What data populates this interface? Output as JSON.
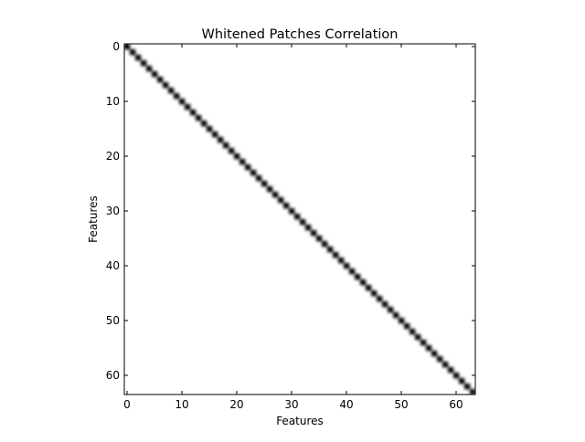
{
  "chart_data": {
    "type": "heatmap",
    "title": "Whitened Patches Correlation",
    "xlabel": "Features",
    "ylabel": "Features",
    "size": 64,
    "xlim": [
      -0.5,
      63.5
    ],
    "ylim": [
      63.5,
      -0.5
    ],
    "xticks": [
      0,
      10,
      20,
      30,
      40,
      50,
      60
    ],
    "yticks": [
      0,
      10,
      20,
      30,
      40,
      50,
      60
    ],
    "colormap": "gray_r",
    "diagonal_value": 1.0,
    "off_diagonal_value": 0.0,
    "colors": {
      "high": "#000000",
      "low": "#ffffff",
      "frame": "#000000"
    }
  }
}
